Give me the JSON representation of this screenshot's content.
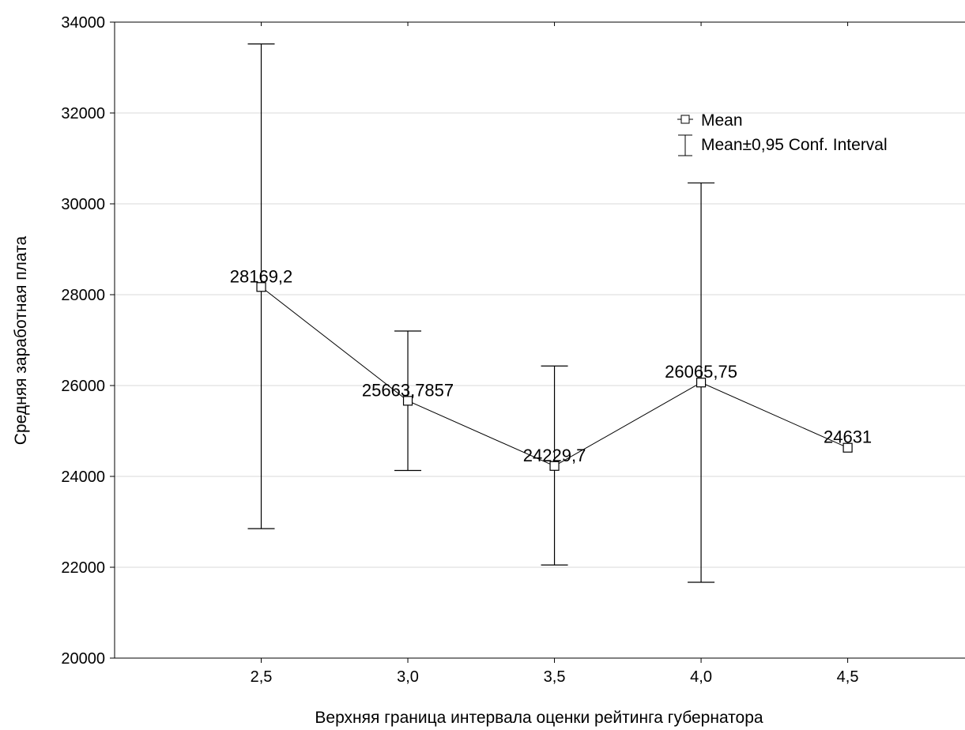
{
  "chart_data": {
    "type": "line",
    "xlabel": "Верхняя граница интервала оценки рейтинга губернатора",
    "ylabel": "Средняя заработная плата",
    "ylim": [
      20000,
      34000
    ],
    "yticks": [
      20000,
      22000,
      24000,
      26000,
      28000,
      30000,
      32000,
      34000
    ],
    "x_tick_labels": [
      "2,5",
      "3,0",
      "3,5",
      "4,0",
      "4,5"
    ],
    "x": [
      2.5,
      3.0,
      3.5,
      4.0,
      4.5
    ],
    "mean": [
      28169.2,
      25663.7857,
      24229.7,
      26065.75,
      24631
    ],
    "mean_labels": [
      "28169,2",
      "25663,7857",
      "24229,7",
      "26065,75",
      "24631"
    ],
    "ci_lower": [
      22850,
      24130,
      22050,
      21670,
      null
    ],
    "ci_upper": [
      33520,
      27200,
      26430,
      30460,
      null
    ],
    "legend": {
      "placement": "top-right",
      "items": [
        "Mean",
        "Mean±0,95 Conf. Interval"
      ]
    },
    "grid": "horizontal"
  }
}
